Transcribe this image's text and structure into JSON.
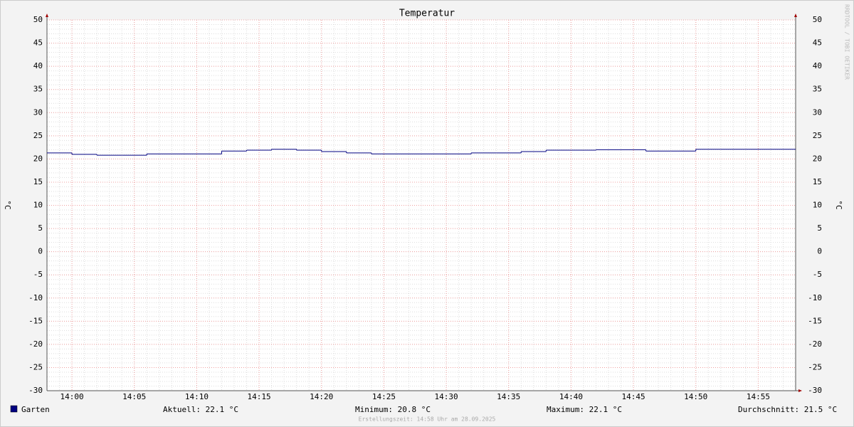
{
  "chart_data": {
    "type": "line",
    "title": "Temperatur",
    "y_label": "°C",
    "unit": "°C",
    "x": [
      "13:58",
      "14:00",
      "14:02",
      "14:04",
      "14:06",
      "14:08",
      "14:10",
      "14:12",
      "14:14",
      "14:16",
      "14:18",
      "14:20",
      "14:22",
      "14:24",
      "14:26",
      "14:28",
      "14:30",
      "14:32",
      "14:34",
      "14:36",
      "14:38",
      "14:40",
      "14:42",
      "14:44",
      "14:46",
      "14:48",
      "14:50",
      "14:52",
      "14:54",
      "14:56"
    ],
    "xlim": [
      "13:58",
      "14:58"
    ],
    "xticks": [
      "14:00",
      "14:05",
      "14:10",
      "14:15",
      "14:20",
      "14:25",
      "14:30",
      "14:35",
      "14:40",
      "14:45",
      "14:50",
      "14:55"
    ],
    "series": [
      {
        "name": "Garten",
        "color": "#000080",
        "values": [
          21.3,
          21.0,
          20.8,
          20.8,
          21.1,
          21.1,
          21.1,
          21.7,
          21.9,
          22.1,
          21.9,
          21.6,
          21.3,
          21.1,
          21.1,
          21.1,
          21.1,
          21.3,
          21.3,
          21.6,
          21.9,
          21.9,
          22.0,
          22.0,
          21.7,
          21.7,
          22.1,
          22.1,
          22.1,
          22.1
        ]
      }
    ],
    "ylim": [
      -30,
      50
    ],
    "yticks": [
      -30,
      -25,
      -20,
      -15,
      -10,
      -5,
      0,
      5,
      10,
      15,
      20,
      25,
      30,
      35,
      40,
      45,
      50
    ],
    "grid": true,
    "stats": [
      {
        "label": "Aktuell:",
        "value": 22.1
      },
      {
        "label": "Minimum:",
        "value": 20.8
      },
      {
        "label": "Maximum:",
        "value": 22.1
      },
      {
        "label": "Durchschnitt:",
        "value": 21.5
      }
    ],
    "watermark": "RRDTOOL / TOBI OETIKER",
    "footer": "Erstellungszeit: 14:58 Uhr am 28.09.2025"
  }
}
